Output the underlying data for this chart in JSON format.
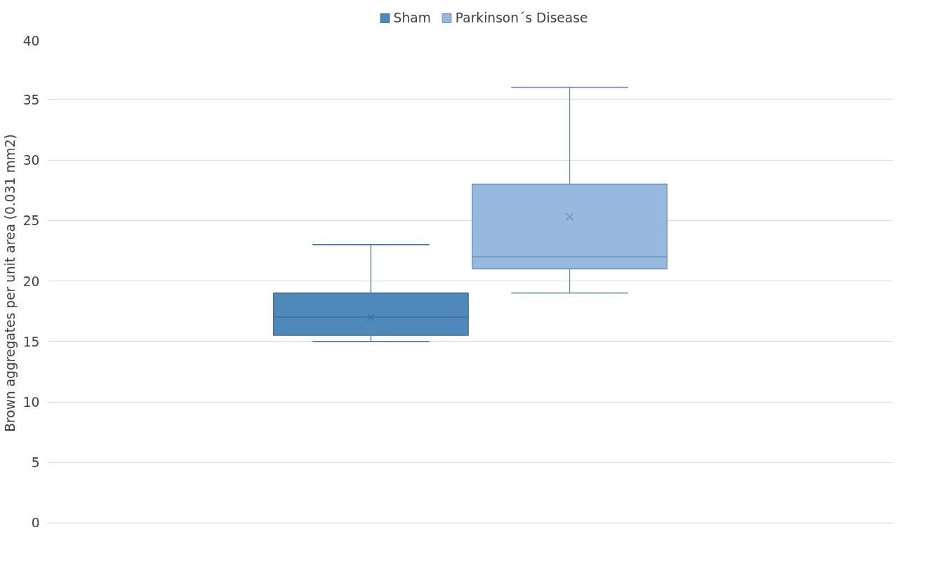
{
  "chart_data": {
    "type": "box",
    "ylabel": "Brown  aggregates per unit area (0.031 mm2)",
    "categories": [
      null
    ],
    "ylim": [
      0,
      40
    ],
    "yticks": [
      0,
      5,
      10,
      15,
      20,
      25,
      30,
      35,
      40
    ],
    "grid": "y",
    "legend": "top",
    "tick_labels": "y",
    "series": [
      {
        "name": "Sham",
        "color": "#4f88bb",
        "boxes": [
          {
            "low": 15,
            "q1": 15.5,
            "median": 17,
            "q3": 19,
            "high": 23,
            "mean": 17
          }
        ]
      },
      {
        "name": "Parkinson´s Disease",
        "color": "#97b8df",
        "boxes": [
          {
            "low": 19,
            "q1": 21,
            "median": 22,
            "q3": 28,
            "high": 36,
            "mean": 25.3
          }
        ]
      }
    ]
  }
}
